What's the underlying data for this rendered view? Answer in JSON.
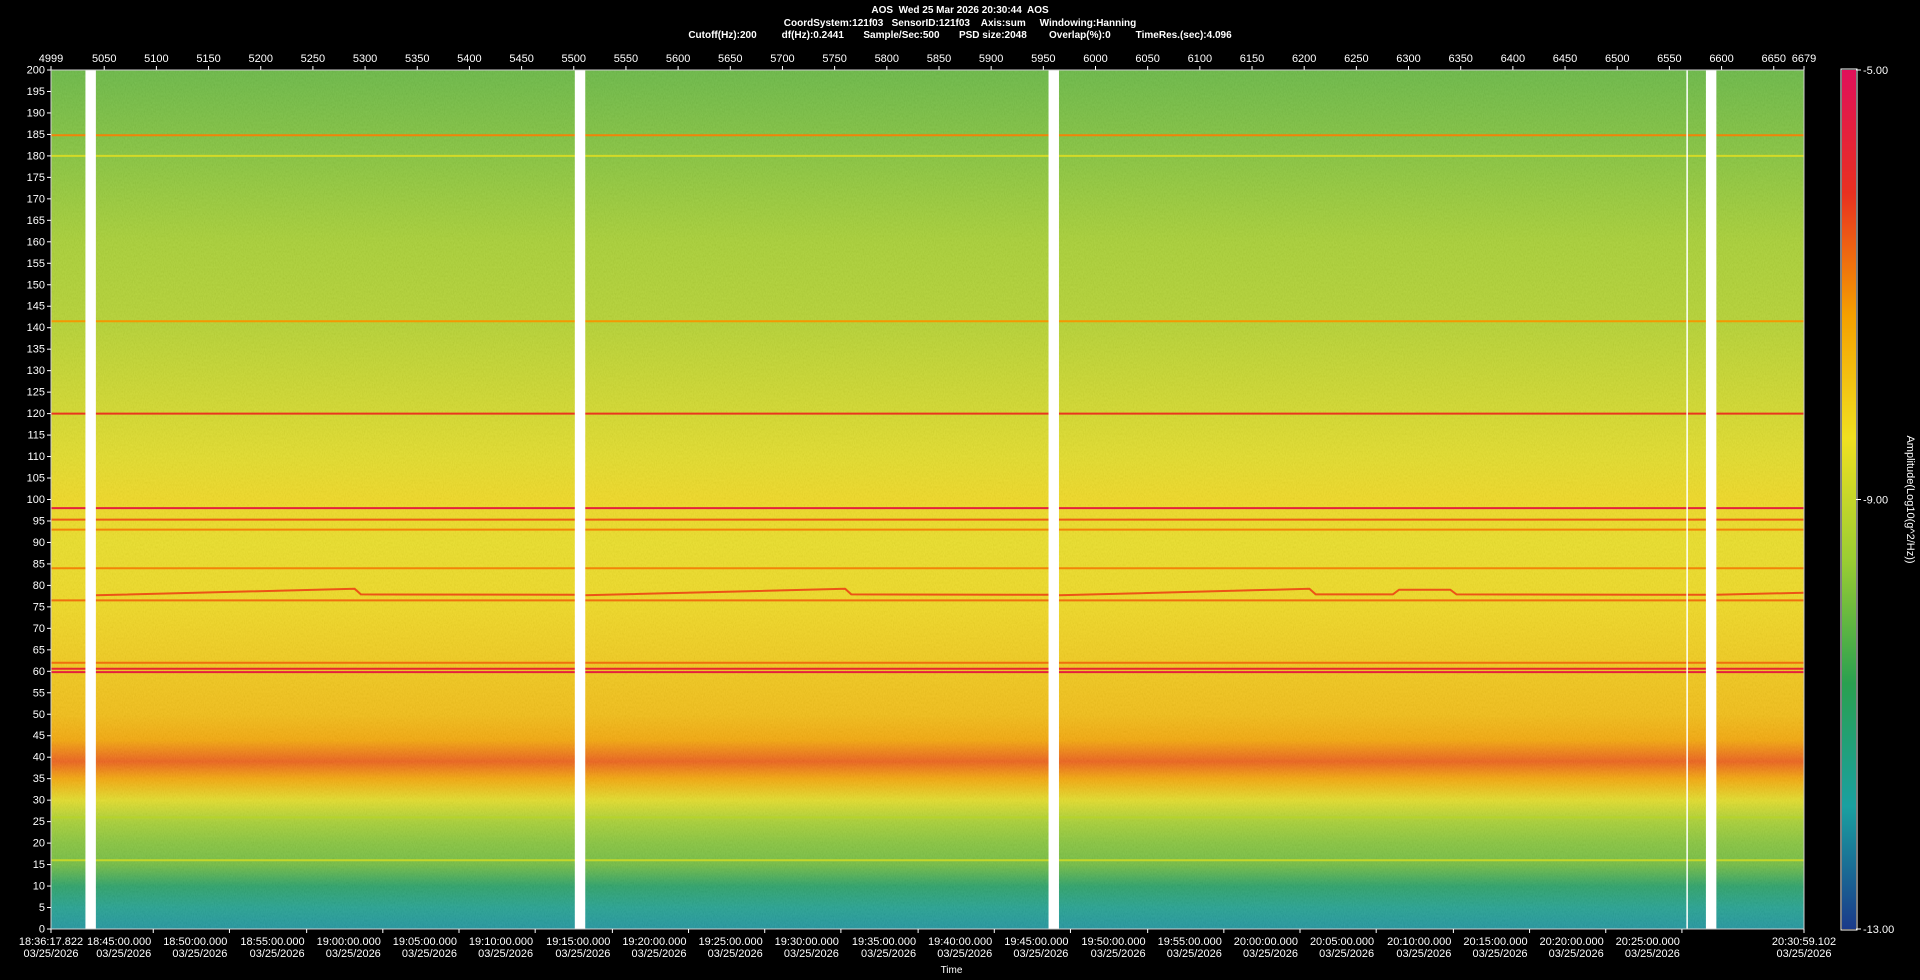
{
  "header": {
    "title": "AOS  Wed 25 Mar 2026 20:30:44  AOS",
    "line2": "CoordSystem:121f03   SensorID:121f03    Axis:sum     Windowing:Hanning",
    "line3": "Cutoff(Hz):200         df(Hz):0.2441       Sample/Sec:500       PSD size:2048        Overlap(%):0         TimeRes.(sec):4.096"
  },
  "colorbar": {
    "label": "Amplitude(Log10(g^2/Hz))",
    "max_label": "-5.00",
    "mid_label": "-9.00",
    "min_label": "-13.00",
    "max": -5.0,
    "min": -13.0,
    "colors": [
      "#1a3a8a",
      "#1aa0a0",
      "#2aa050",
      "#9acd32",
      "#f0e020",
      "#f5a000",
      "#e83020",
      "#e0105a"
    ]
  },
  "chart_data": {
    "type": "heatmap",
    "title": "AOS  Wed 25 Mar 2026 20:30:44  AOS",
    "xlabel": "Time",
    "ylabel": "",
    "x_top_label": "",
    "frame_range": [
      4999,
      6679
    ],
    "top_ticks": [
      "4999",
      "5050",
      "5100",
      "5150",
      "5200",
      "5250",
      "5300",
      "5350",
      "5400",
      "5450",
      "5500",
      "5550",
      "5600",
      "5650",
      "5700",
      "5750",
      "5800",
      "5850",
      "5900",
      "5950",
      "6000",
      "6050",
      "6100",
      "6150",
      "6200",
      "6250",
      "6300",
      "6350",
      "6400",
      "6450",
      "6500",
      "6550",
      "6600",
      "6650",
      "6679"
    ],
    "top_tick_values": [
      4999,
      5050,
      5100,
      5150,
      5200,
      5250,
      5300,
      5350,
      5400,
      5450,
      5500,
      5550,
      5600,
      5650,
      5700,
      5750,
      5800,
      5850,
      5900,
      5950,
      6000,
      6050,
      6100,
      6150,
      6200,
      6250,
      6300,
      6350,
      6400,
      6450,
      6500,
      6550,
      6600,
      6650,
      6679
    ],
    "ylim": [
      0,
      200
    ],
    "y_ticks": [
      0,
      5,
      10,
      15,
      20,
      25,
      30,
      35,
      40,
      45,
      50,
      55,
      60,
      65,
      70,
      75,
      80,
      85,
      90,
      95,
      100,
      105,
      110,
      115,
      120,
      125,
      130,
      135,
      140,
      145,
      150,
      155,
      160,
      165,
      170,
      175,
      180,
      185,
      190,
      195,
      200
    ],
    "bottom_ticks": [
      {
        "frame": 4999,
        "time": "18:36:17.822",
        "date": "03/25/2026"
      },
      {
        "frame": 5097,
        "time": "18:45:00.000",
        "date": "03/25/2026"
      },
      {
        "frame": 5170,
        "time": "18:50:00.000",
        "date": "03/25/2026"
      },
      {
        "frame": 5244,
        "time": "18:55:00.000",
        "date": "03/25/2026"
      },
      {
        "frame": 5317,
        "time": "19:00:00.000",
        "date": "03/25/2026"
      },
      {
        "frame": 5390,
        "time": "19:05:00.000",
        "date": "03/25/2026"
      },
      {
        "frame": 5463,
        "time": "19:10:00.000",
        "date": "03/25/2026"
      },
      {
        "frame": 5537,
        "time": "19:15:00.000",
        "date": "03/25/2026"
      },
      {
        "frame": 5610,
        "time": "19:20:00.000",
        "date": "03/25/2026"
      },
      {
        "frame": 5683,
        "time": "19:25:00.000",
        "date": "03/25/2026"
      },
      {
        "frame": 5756,
        "time": "19:30:00.000",
        "date": "03/25/2026"
      },
      {
        "frame": 5830,
        "time": "19:35:00.000",
        "date": "03/25/2026"
      },
      {
        "frame": 5903,
        "time": "19:40:00.000",
        "date": "03/25/2026"
      },
      {
        "frame": 5976,
        "time": "19:45:00.000",
        "date": "03/25/2026"
      },
      {
        "frame": 6050,
        "time": "19:50:00.000",
        "date": "03/25/2026"
      },
      {
        "frame": 6123,
        "time": "19:55:00.000",
        "date": "03/25/2026"
      },
      {
        "frame": 6196,
        "time": "20:00:00.000",
        "date": "03/25/2026"
      },
      {
        "frame": 6269,
        "time": "20:05:00.000",
        "date": "03/25/2026"
      },
      {
        "frame": 6343,
        "time": "20:10:00.000",
        "date": "03/25/2026"
      },
      {
        "frame": 6416,
        "time": "20:15:00.000",
        "date": "03/25/2026"
      },
      {
        "frame": 6489,
        "time": "20:20:00.000",
        "date": "03/25/2026"
      },
      {
        "frame": 6562,
        "time": "20:25:00.000",
        "date": "03/25/2026"
      },
      {
        "frame": 6679,
        "time": "20:30:59.102",
        "date": "03/25/2026"
      }
    ],
    "data_gaps_frames": [
      [
        5032,
        5042
      ],
      [
        5501,
        5511
      ],
      [
        5955,
        5965
      ],
      [
        6585,
        6595
      ]
    ],
    "thin_gap_frame": 6567,
    "amplitude_profile": [
      {
        "hz": 0,
        "value": -12.0
      },
      {
        "hz": 5,
        "value": -11.6
      },
      {
        "hz": 10,
        "value": -11.0
      },
      {
        "hz": 15,
        "value": -10.0
      },
      {
        "hz": 20,
        "value": -9.8
      },
      {
        "hz": 25,
        "value": -9.4
      },
      {
        "hz": 30,
        "value": -8.6
      },
      {
        "hz": 35,
        "value": -7.4
      },
      {
        "hz": 39,
        "value": -6.6
      },
      {
        "hz": 44,
        "value": -7.4
      },
      {
        "hz": 50,
        "value": -7.8
      },
      {
        "hz": 60,
        "value": -8.0
      },
      {
        "hz": 75,
        "value": -8.3
      },
      {
        "hz": 90,
        "value": -8.5
      },
      {
        "hz": 100,
        "value": -8.3
      },
      {
        "hz": 110,
        "value": -8.6
      },
      {
        "hz": 125,
        "value": -8.9
      },
      {
        "hz": 140,
        "value": -9.2
      },
      {
        "hz": 160,
        "value": -9.4
      },
      {
        "hz": 180,
        "value": -9.8
      },
      {
        "hz": 200,
        "value": -10.1
      }
    ],
    "tonal_lines": [
      {
        "hz": 16,
        "value": -9.0
      },
      {
        "hz": 26,
        "value": -9.2
      },
      {
        "hz": 59.8,
        "value": -5.6
      },
      {
        "hz": 60.6,
        "value": -5.8
      },
      {
        "hz": 62,
        "value": -6.8
      },
      {
        "hz": 76.5,
        "value": -6.8
      },
      {
        "hz": 84,
        "value": -7.0
      },
      {
        "hz": 93,
        "value": -7.0
      },
      {
        "hz": 95.3,
        "value": -6.6
      },
      {
        "hz": 98,
        "value": -5.6
      },
      {
        "hz": 120,
        "value": -6.2
      },
      {
        "hz": 141.5,
        "value": -7.2
      },
      {
        "hz": 180,
        "value": -8.8
      },
      {
        "hz": 184.8,
        "value": -7.0
      }
    ],
    "drifting_lines": [
      {
        "name": "",
        "points": [
          [
            5042,
            77.7
          ],
          [
            5290,
            79.2
          ],
          [
            5296,
            77.9
          ],
          [
            5501,
            77.8
          ]
        ],
        "value": -6.5
      },
      {
        "name": "",
        "points": [
          [
            5511,
            77.7
          ],
          [
            5760,
            79.2
          ],
          [
            5766,
            77.9
          ],
          [
            5955,
            77.8
          ]
        ],
        "value": -6.5
      },
      {
        "name": "",
        "points": [
          [
            5965,
            77.7
          ],
          [
            6205,
            79.2
          ],
          [
            6211,
            77.9
          ],
          [
            6285,
            77.9
          ],
          [
            6291,
            79.0
          ],
          [
            6340,
            79.0
          ],
          [
            6346,
            77.9
          ],
          [
            6585,
            77.8
          ]
        ],
        "value": -6.5
      },
      {
        "name": "",
        "points": [
          [
            6595,
            77.8
          ],
          [
            6679,
            78.3
          ]
        ],
        "value": -6.5
      }
    ]
  }
}
